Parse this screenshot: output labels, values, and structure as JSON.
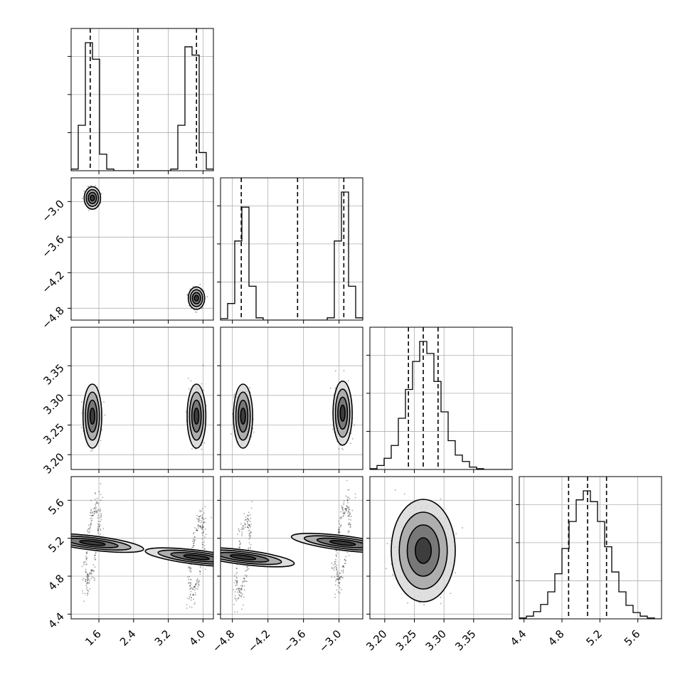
{
  "chart_data": {
    "type": "corner",
    "grid": true,
    "num_parameters": 4,
    "parameters": [
      {
        "index": 0,
        "range": [
          0.96,
          4.24
        ],
        "ticks": [
          1.6,
          2.4,
          3.2,
          4.0
        ],
        "tick_labels": [
          "1.6",
          "2.4",
          "3.2",
          "4.0"
        ],
        "histogram": {
          "bin_edges": [
            0.96,
            1.124,
            1.288,
            1.452,
            1.616,
            1.78,
            1.944,
            2.108,
            2.272,
            2.436,
            2.6,
            2.764,
            2.928,
            3.092,
            3.256,
            3.42,
            3.584,
            3.748,
            3.912,
            4.076,
            4.24
          ],
          "counts": [
            2,
            55,
            155,
            135,
            20,
            2,
            0,
            0,
            0,
            0,
            0,
            0,
            0,
            0,
            2,
            55,
            150,
            140,
            22,
            2
          ]
        },
        "quantile_lines": [
          1.4,
          2.5,
          3.85
        ]
      },
      {
        "index": 1,
        "range": [
          -5.0,
          -2.6
        ],
        "ticks": [
          -4.8,
          -4.2,
          -3.6,
          -3.0
        ],
        "tick_labels": [
          "−4.8",
          "−4.2",
          "−3.6",
          "−3.0"
        ],
        "histogram": {
          "bin_edges": [
            -5.0,
            -4.88,
            -4.76,
            -4.64,
            -4.52,
            -4.4,
            -4.28,
            -4.16,
            -4.04,
            -3.92,
            -3.8,
            -3.68,
            -3.56,
            -3.44,
            -3.32,
            -3.2,
            -3.08,
            -2.96,
            -2.84,
            -2.72,
            -2.6
          ],
          "counts": [
            2,
            22,
            105,
            150,
            45,
            3,
            0,
            0,
            0,
            0,
            0,
            0,
            0,
            0,
            0,
            3,
            105,
            170,
            45,
            3
          ]
        },
        "quantile_lines": [
          -4.65,
          -3.7,
          -2.92
        ]
      },
      {
        "index": 2,
        "range": [
          3.175,
          3.415
        ],
        "ticks": [
          3.2,
          3.25,
          3.3,
          3.35
        ],
        "tick_labels": [
          "3.20",
          "3.25",
          "3.30",
          "3.35"
        ],
        "histogram": {
          "bin_edges": [
            3.175,
            3.187,
            3.199,
            3.211,
            3.223,
            3.235,
            3.247,
            3.259,
            3.271,
            3.283,
            3.295,
            3.307,
            3.319,
            3.331,
            3.343,
            3.355,
            3.367,
            3.379,
            3.391,
            3.403,
            3.415
          ],
          "counts": [
            1,
            5,
            14,
            30,
            64,
            100,
            135,
            160,
            145,
            110,
            72,
            36,
            18,
            10,
            3,
            1,
            0,
            0,
            0,
            0
          ]
        },
        "quantile_lines": [
          3.24,
          3.265,
          3.29
        ]
      },
      {
        "index": 3,
        "range": [
          4.35,
          5.85
        ],
        "ticks": [
          4.4,
          4.8,
          5.2,
          5.6
        ],
        "tick_labels": [
          "4.4",
          "4.8",
          "5.2",
          "5.6"
        ],
        "histogram": {
          "bin_edges": [
            4.35,
            4.425,
            4.5,
            4.575,
            4.65,
            4.725,
            4.8,
            4.875,
            4.95,
            5.025,
            5.1,
            5.175,
            5.25,
            5.325,
            5.4,
            5.475,
            5.55,
            5.625,
            5.7,
            5.775,
            5.85
          ],
          "counts": [
            1,
            3,
            8,
            16,
            30,
            50,
            78,
            108,
            132,
            142,
            130,
            108,
            80,
            52,
            30,
            15,
            7,
            3,
            1,
            0
          ]
        },
        "quantile_lines": [
          4.87,
          5.07,
          5.27
        ]
      }
    ],
    "pairs": [
      {
        "x": 0,
        "y": 1,
        "modes": [
          {
            "x": 1.45,
            "y": -2.94,
            "sx": 0.07,
            "sy": 0.07,
            "rho": 0.0
          },
          {
            "x": 3.85,
            "y": -4.63,
            "sx": 0.07,
            "sy": 0.07,
            "rho": 0.0
          }
        ]
      },
      {
        "x": 0,
        "y": 2,
        "modes": [
          {
            "x": 1.45,
            "y": 3.265,
            "sx": 0.08,
            "sy": 0.02,
            "rho": 0.0
          },
          {
            "x": 3.85,
            "y": 3.265,
            "sx": 0.08,
            "sy": 0.02,
            "rho": 0.0
          }
        ]
      },
      {
        "x": 1,
        "y": 2,
        "modes": [
          {
            "x": -4.62,
            "y": 3.265,
            "sx": 0.06,
            "sy": 0.02,
            "rho": 0.0
          },
          {
            "x": -2.94,
            "y": 3.27,
            "sx": 0.06,
            "sy": 0.02,
            "rho": 0.0
          }
        ]
      },
      {
        "x": 0,
        "y": 3,
        "modes": [
          {
            "x": 1.45,
            "y": 5.15,
            "sx": 0.08,
            "sy": 0.2,
            "rho": 0.65
          },
          {
            "x": 3.85,
            "y": 5.0,
            "sx": 0.08,
            "sy": 0.2,
            "rho": 0.65
          }
        ]
      },
      {
        "x": 1,
        "y": 3,
        "modes": [
          {
            "x": -4.62,
            "y": 5.0,
            "sx": 0.06,
            "sy": 0.2,
            "rho": 0.65
          },
          {
            "x": -2.94,
            "y": 5.15,
            "sx": 0.06,
            "sy": 0.2,
            "rho": 0.65
          }
        ]
      },
      {
        "x": 2,
        "y": 3,
        "modes": [
          {
            "x": 3.265,
            "y": 5.07,
            "sx": 0.02,
            "sy": 0.2,
            "rho": 0.0
          }
        ]
      }
    ],
    "density_grayscale": true,
    "contour_levels_sigma": [
      0.5,
      1.0,
      1.5,
      2.0
    ]
  }
}
